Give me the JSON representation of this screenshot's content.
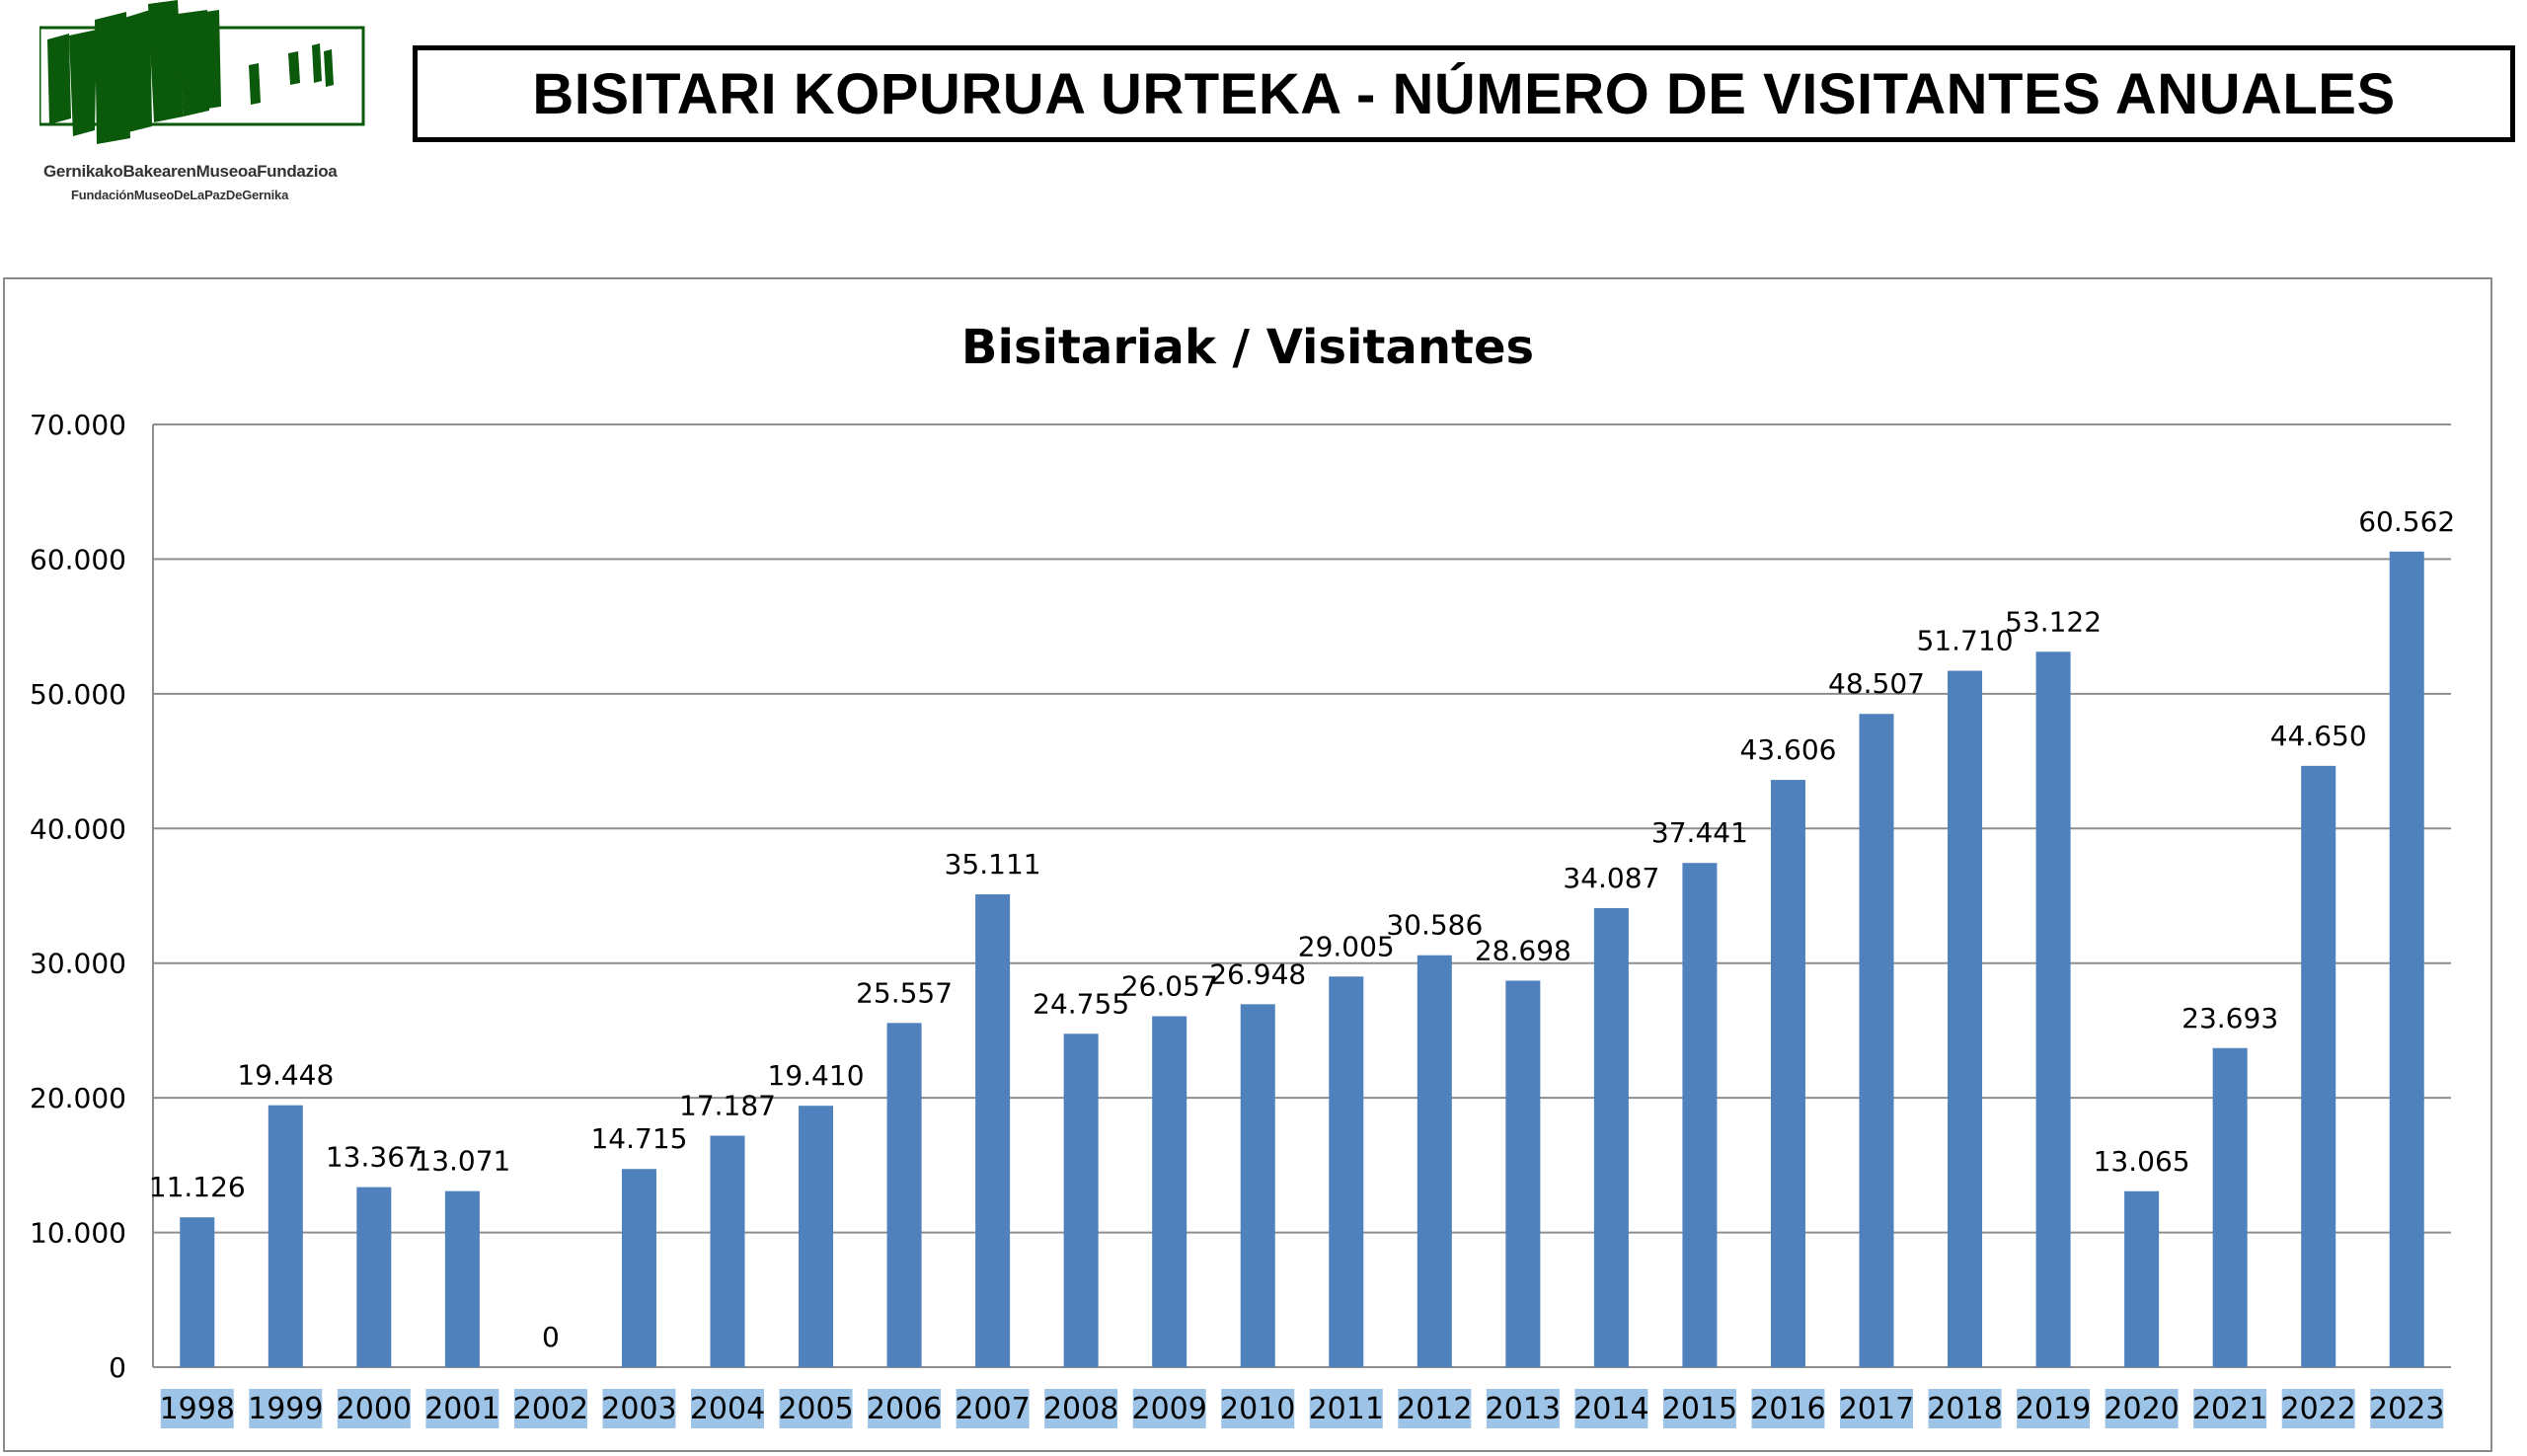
{
  "logo": {
    "line1": "GernikakoBakearenMuseoaFundazioa",
    "line2": "FundaciónMuseoDeLaPazDeGernika",
    "color": "#0b5a0b"
  },
  "header": {
    "title": "BISITARI KOPURUA URTEKA - NÚMERO DE VISITANTES ANUALES"
  },
  "chart_data": {
    "type": "bar",
    "title": "Bisitariak / Visitantes",
    "xlabel": "",
    "ylabel": "",
    "categories": [
      "1998",
      "1999",
      "2000",
      "2001",
      "2002",
      "2003",
      "2004",
      "2005",
      "2006",
      "2007",
      "2008",
      "2009",
      "2010",
      "2011",
      "2012",
      "2013",
      "2014",
      "2015",
      "2016",
      "2017",
      "2018",
      "2019",
      "2020",
      "2021",
      "2022",
      "2023"
    ],
    "values": [
      11126,
      19448,
      13367,
      13071,
      0,
      14715,
      17187,
      19410,
      25557,
      35111,
      24755,
      26057,
      26948,
      29005,
      30586,
      28698,
      34087,
      37441,
      43606,
      48507,
      51710,
      53122,
      13065,
      23693,
      44650,
      60562
    ],
    "data_labels": [
      "11.126",
      "19.448",
      "13.367",
      "13.071",
      "0",
      "14.715",
      "17.187",
      "19.410",
      "25.557",
      "35.111",
      "24.755",
      "26.057",
      "26.948",
      "29.005",
      "30.586",
      "28.698",
      "34.087",
      "37.441",
      "43.606",
      "48.507",
      "51.710",
      "53.122",
      "13.065",
      "23.693",
      "44.650",
      "60.562"
    ],
    "ylim": [
      0,
      70000
    ],
    "yticks": [
      0,
      10000,
      20000,
      30000,
      40000,
      50000,
      60000,
      70000
    ],
    "ytick_labels": [
      "0",
      "10.000",
      "20.000",
      "30.000",
      "40.000",
      "50.000",
      "60.000",
      "70.000"
    ],
    "grid": true,
    "legend": "none",
    "bar_color": "#4f81bd",
    "category_label_bg": "#9dc3e6"
  }
}
